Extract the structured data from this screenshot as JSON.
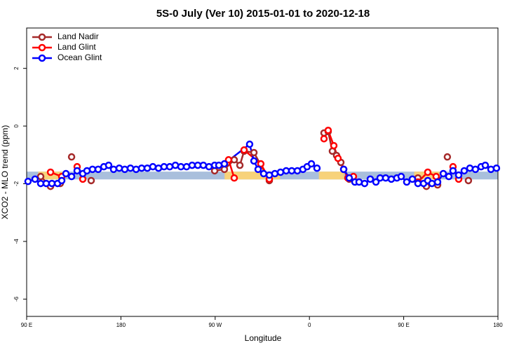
{
  "chart_data": {
    "type": "line",
    "title": "5S-0 July (Ver 10)   2015-01-01 to 2020-12-18",
    "x_label": "Longitude",
    "y_label": "XCO2 - MLO trend (ppm)",
    "xlim": [
      90,
      540
    ],
    "xticks": [
      {
        "value": 90,
        "label": "90 E"
      },
      {
        "value": 180,
        "label": "180"
      },
      {
        "value": 270,
        "label": "90 W"
      },
      {
        "value": 360,
        "label": "0"
      },
      {
        "value": 450,
        "label": "90 E"
      },
      {
        "value": 540,
        "label": "180"
      }
    ],
    "ylim": [
      -6.6,
      3.4
    ],
    "yticks": [
      -6,
      -4,
      -2,
      0,
      2
    ],
    "legend": "top-left",
    "band": {
      "ylim": [
        -1.85,
        -1.58
      ],
      "color": "#a9bfdc"
    },
    "highlight": {
      "color": "#f7d27a",
      "ranges": [
        [
          101,
          125
        ],
        [
          279,
          332
        ],
        [
          369,
          393
        ],
        [
          460,
          486
        ]
      ]
    },
    "series": [
      {
        "name": "Land Nadir",
        "color": "#a52a2a",
        "x": [
          103.4,
          112.8,
          122.1,
          null,
          132.9,
          null,
          151.6,
          null,
          269.5,
          278.8,
          288.2,
          293.6,
          297.6,
          307.0,
          321.7,
          null,
          373.9,
          377.9,
          381.9,
          385.9,
          390.0,
          398.0,
          null,
          463.6,
          471.7,
          482.4,
          null,
          491.7,
          null,
          511.8
        ],
        "values": [
          -1.75,
          -2.09,
          -1.99,
          null,
          -1.07,
          null,
          -1.89,
          null,
          -1.55,
          -1.5,
          -1.17,
          -1.36,
          -0.87,
          -0.92,
          -1.89,
          null,
          -0.24,
          -0.19,
          -0.87,
          -1.02,
          -1.26,
          -1.84,
          null,
          -1.8,
          -2.09,
          -2.04,
          null,
          -1.07,
          null,
          -1.89
        ]
      },
      {
        "name": "Land Glint",
        "color": "#ff0000",
        "x": [
          112.8,
          123.5,
          null,
          138.2,
          143.6,
          null,
          282.8,
          288.2,
          null,
          297.6,
          313.6,
          321.7,
          null,
          373.9,
          377.9,
          383.3,
          387.3,
          392.7,
          396.7,
          402.0,
          null,
          463.6,
          473.0,
          481.0,
          null,
          497.1,
          502.5
        ],
        "values": [
          -1.6,
          -1.75,
          null,
          -1.41,
          -1.84,
          null,
          -1.17,
          -1.8,
          null,
          -0.83,
          -1.31,
          -1.84,
          null,
          -0.44,
          -0.15,
          -0.68,
          -1.12,
          -1.5,
          -1.8,
          -1.75,
          null,
          -1.94,
          -1.6,
          -1.75,
          null,
          -1.41,
          -1.84
        ]
      },
      {
        "name": "Ocean Glint",
        "color": "#0000ff",
        "x": [
          91.3,
          98.0,
          103.4,
          108.7,
          114.1,
          119.5,
          123.5,
          127.5,
          132.9,
          138.2,
          143.6,
          147.6,
          152.9,
          158.3,
          163.7,
          168.3,
          173.0,
          178.4,
          183.7,
          189.1,
          194.5,
          199.8,
          205.2,
          210.5,
          215.9,
          221.2,
          226.6,
          232.0,
          237.3,
          242.7,
          248.0,
          253.4,
          258.7,
          264.1,
          269.5,
          273.5,
          278.8,
          302.9,
          307.0,
          311.0,
          316.3,
          321.7,
          327.0,
          332.4,
          337.8,
          343.1,
          348.5,
          353.8,
          357.8,
          361.9,
          367.2,
          null,
          392.7,
          398.0,
          403.4,
          407.4,
          412.7,
          418.1,
          423.5,
          427.5,
          432.8,
          438.2,
          443.5,
          447.6,
          452.9,
          458.3,
          463.6,
          469.0,
          473.0,
          477.0,
          482.4,
          487.8,
          493.1,
          497.1,
          502.5,
          507.8,
          513.2,
          518.5,
          523.9,
          527.9,
          533.3,
          538.6
        ],
        "values": [
          -1.92,
          -1.84,
          -1.99,
          -1.99,
          -1.99,
          -1.99,
          -1.89,
          -1.65,
          -1.75,
          -1.55,
          -1.65,
          -1.55,
          -1.5,
          -1.5,
          -1.41,
          -1.36,
          -1.5,
          -1.46,
          -1.5,
          -1.46,
          -1.5,
          -1.46,
          -1.46,
          -1.41,
          -1.46,
          -1.41,
          -1.41,
          -1.36,
          -1.41,
          -1.41,
          -1.36,
          -1.36,
          -1.36,
          -1.41,
          -1.36,
          -1.36,
          -1.31,
          -0.63,
          -1.21,
          -1.5,
          -1.65,
          -1.7,
          -1.65,
          -1.6,
          -1.55,
          -1.55,
          -1.55,
          -1.5,
          -1.41,
          -1.31,
          -1.46,
          null,
          -1.5,
          -1.8,
          -1.94,
          -1.94,
          -1.99,
          -1.84,
          -1.94,
          -1.8,
          -1.8,
          -1.84,
          -1.8,
          -1.75,
          -1.94,
          -1.84,
          -1.99,
          -1.99,
          -1.89,
          -1.99,
          -1.94,
          -1.65,
          -1.75,
          -1.55,
          -1.7,
          -1.55,
          -1.46,
          -1.5,
          -1.41,
          -1.36,
          -1.5,
          -1.46
        ]
      }
    ]
  }
}
